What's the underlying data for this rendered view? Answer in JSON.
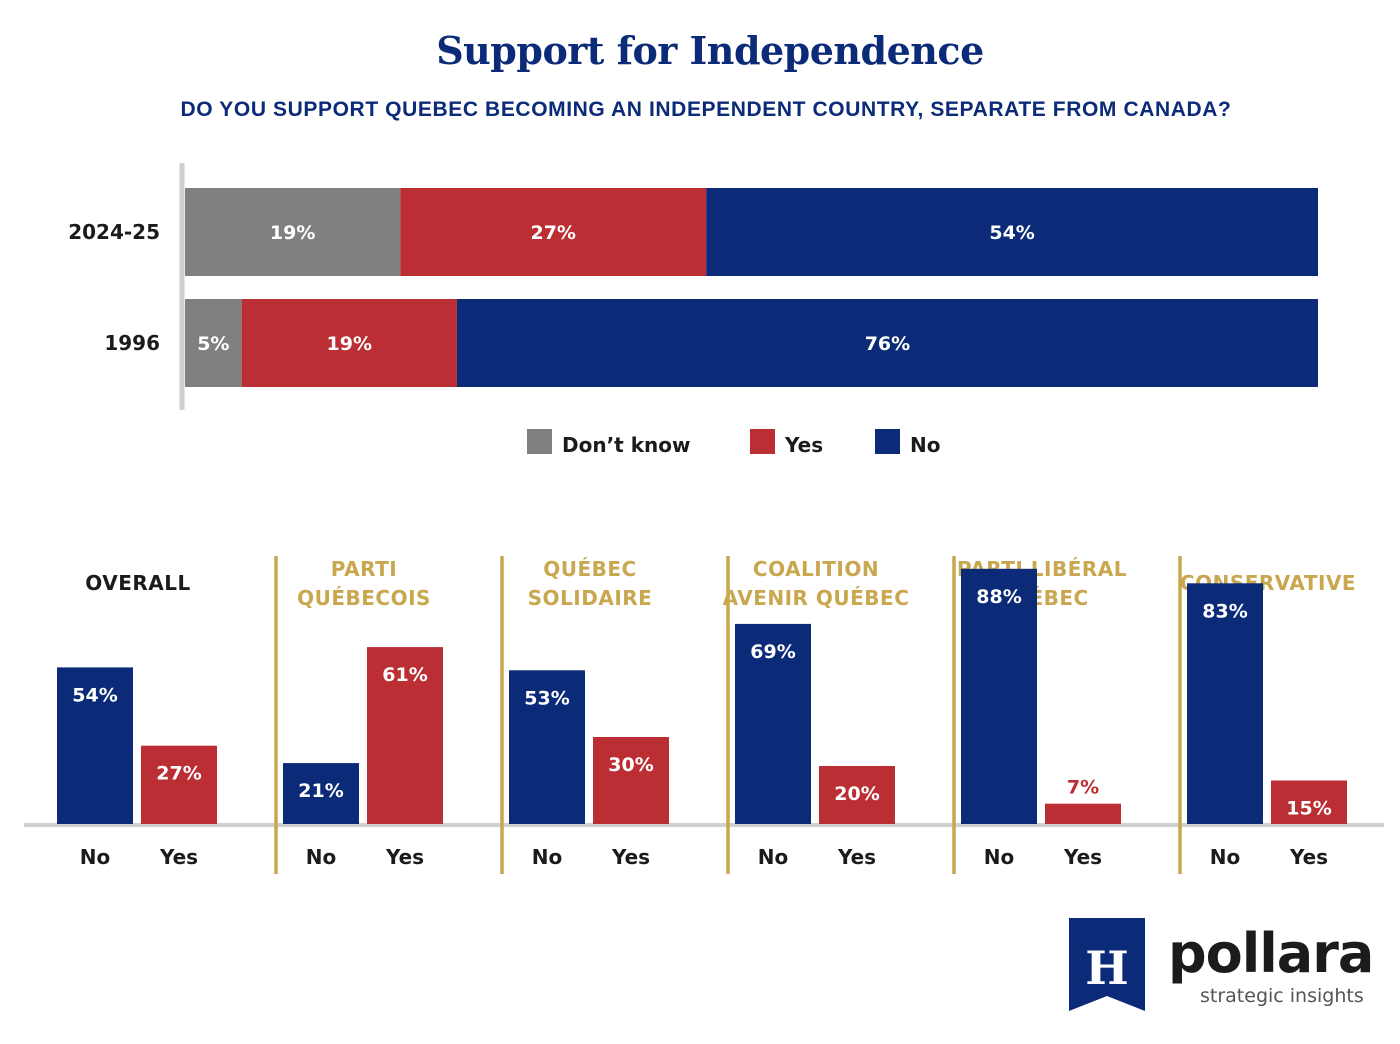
{
  "title": "Support for Independence",
  "subtitle": "DO YOU SUPPORT QUEBEC BECOMING AN INDEPENDENT COUNTRY, SEPARATE FROM CANADA?",
  "colors": {
    "dont_know": "#808080",
    "yes": "#bb2e33",
    "no": "#0b2a78",
    "accent": "#c9a74f",
    "axis": "#d0d0d0"
  },
  "chart_data": [
    {
      "type": "bar",
      "orientation": "horizontal",
      "stacked": true,
      "categories": [
        "2024-25",
        "1996"
      ],
      "series": [
        {
          "name": "Don’t know",
          "color": "#808080",
          "values": [
            19,
            5
          ],
          "labels": [
            "19%",
            "5%"
          ]
        },
        {
          "name": "Yes",
          "color": "#bb2e33",
          "values": [
            27,
            19
          ],
          "labels": [
            "27%",
            "19%"
          ]
        },
        {
          "name": "No",
          "color": "#0b2a78",
          "values": [
            54,
            76
          ],
          "labels": [
            "54%",
            "76%"
          ]
        }
      ],
      "xlim": [
        0,
        100
      ],
      "legend": "bottom"
    },
    {
      "type": "bar",
      "panels": [
        {
          "title": [
            "OVERALL"
          ],
          "title_color": "#1b1b1b",
          "categories": [
            "No",
            "Yes"
          ],
          "values": [
            54,
            27
          ],
          "labels": [
            "54%",
            "27%"
          ]
        },
        {
          "title": [
            "PARTI",
            "QUÉBECOIS"
          ],
          "title_color": "#c9a74f",
          "categories": [
            "No",
            "Yes"
          ],
          "values": [
            21,
            61
          ],
          "labels": [
            "21%",
            "61%"
          ]
        },
        {
          "title": [
            "QUÉBEC",
            "SOLIDAIRE"
          ],
          "title_color": "#c9a74f",
          "categories": [
            "No",
            "Yes"
          ],
          "values": [
            53,
            30
          ],
          "labels": [
            "53%",
            "30%"
          ]
        },
        {
          "title": [
            "COALITION",
            "AVENIR QUÉBEC"
          ],
          "title_color": "#c9a74f",
          "categories": [
            "No",
            "Yes"
          ],
          "values": [
            69,
            20
          ],
          "labels": [
            "69%",
            "20%"
          ]
        },
        {
          "title": [
            "PARTI LIBÉRAL",
            "QUÉBEC"
          ],
          "title_color": "#c9a74f",
          "categories": [
            "No",
            "Yes"
          ],
          "values": [
            88,
            7
          ],
          "labels": [
            "88%",
            "7%"
          ]
        },
        {
          "title": [
            "CONSERVATIVE"
          ],
          "title_color": "#c9a74f",
          "categories": [
            "No",
            "Yes"
          ],
          "values": [
            83,
            15
          ],
          "labels": [
            "83%",
            "15%"
          ]
        }
      ],
      "series_colors": [
        "#0b2a78",
        "#bb2e33"
      ],
      "ylim": [
        0,
        100
      ]
    }
  ],
  "logo": {
    "mark": "H",
    "brand": "pollara",
    "tagline": "strategic insights",
    "icon": "bookmark-h-icon"
  }
}
